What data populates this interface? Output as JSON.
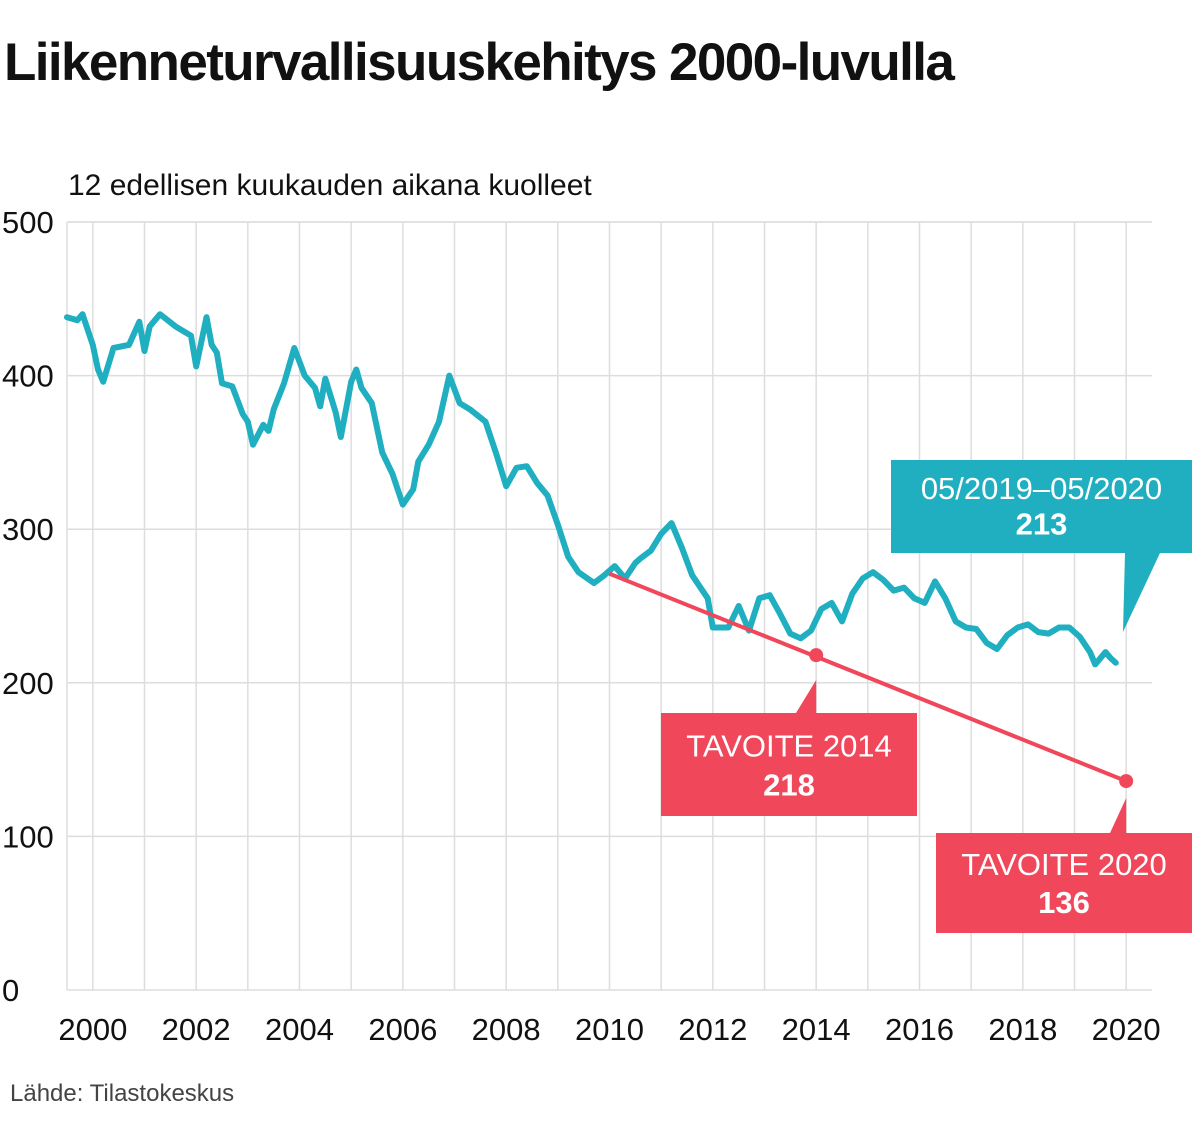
{
  "title": "Liikenneturvallisuuskehitys 2000-luvulla",
  "source": "Lähde: Tilastokeskus",
  "colors": {
    "series": "#1fafc0",
    "target": "#f0475a",
    "grid": "#dddddd"
  },
  "chart_data": {
    "type": "line",
    "title": "Liikenneturvallisuuskehitys 2000-luvulla",
    "subtitle": "12 edellisen kuukauden aikana kuolleet",
    "xlabel": "",
    "ylabel": "12 edellisen kuukauden aikana kuolleet",
    "xlim": [
      1999.5,
      2020.5
    ],
    "ylim": [
      0,
      500
    ],
    "x_ticks": [
      "2000",
      "2002",
      "2004",
      "2006",
      "2008",
      "2010",
      "2012",
      "2014",
      "2016",
      "2018",
      "2020"
    ],
    "y_ticks": [
      "0",
      "100",
      "200",
      "300",
      "400",
      "500"
    ],
    "grid": true,
    "series": [
      {
        "points": [
          [
            1999.5,
            438
          ],
          [
            1999.7,
            436
          ],
          [
            1999.8,
            440
          ],
          [
            2000.0,
            420
          ],
          [
            2000.1,
            404
          ],
          [
            2000.2,
            396
          ],
          [
            2000.4,
            418
          ],
          [
            2000.7,
            420
          ],
          [
            2000.9,
            435
          ],
          [
            2001.0,
            416
          ],
          [
            2001.1,
            432
          ],
          [
            2001.3,
            440
          ],
          [
            2001.6,
            432
          ],
          [
            2001.9,
            426
          ],
          [
            2002.0,
            406
          ],
          [
            2002.2,
            438
          ],
          [
            2002.3,
            420
          ],
          [
            2002.4,
            415
          ],
          [
            2002.5,
            395
          ],
          [
            2002.7,
            393
          ],
          [
            2002.9,
            375
          ],
          [
            2003.0,
            370
          ],
          [
            2003.1,
            355
          ],
          [
            2003.3,
            368
          ],
          [
            2003.4,
            364
          ],
          [
            2003.5,
            378
          ],
          [
            2003.7,
            395
          ],
          [
            2003.9,
            418
          ],
          [
            2004.1,
            400
          ],
          [
            2004.3,
            392
          ],
          [
            2004.4,
            380
          ],
          [
            2004.5,
            398
          ],
          [
            2004.7,
            376
          ],
          [
            2004.8,
            360
          ],
          [
            2005.0,
            396
          ],
          [
            2005.1,
            404
          ],
          [
            2005.2,
            392
          ],
          [
            2005.4,
            382
          ],
          [
            2005.6,
            350
          ],
          [
            2005.8,
            336
          ],
          [
            2006.0,
            316
          ],
          [
            2006.2,
            326
          ],
          [
            2006.3,
            344
          ],
          [
            2006.5,
            355
          ],
          [
            2006.7,
            370
          ],
          [
            2006.9,
            400
          ],
          [
            2007.1,
            382
          ],
          [
            2007.3,
            378
          ],
          [
            2007.6,
            370
          ],
          [
            2007.8,
            350
          ],
          [
            2008.0,
            328
          ],
          [
            2008.2,
            340
          ],
          [
            2008.4,
            341
          ],
          [
            2008.6,
            330
          ],
          [
            2008.8,
            322
          ],
          [
            2009.0,
            303
          ],
          [
            2009.2,
            282
          ],
          [
            2009.4,
            272
          ],
          [
            2009.7,
            265
          ],
          [
            2009.9,
            270
          ],
          [
            2010.1,
            276
          ],
          [
            2010.3,
            268
          ],
          [
            2010.5,
            278
          ],
          [
            2010.6,
            281
          ],
          [
            2010.8,
            286
          ],
          [
            2011.0,
            297
          ],
          [
            2011.2,
            304
          ],
          [
            2011.4,
            288
          ],
          [
            2011.6,
            270
          ],
          [
            2011.9,
            255
          ],
          [
            2012.0,
            236
          ],
          [
            2012.3,
            236
          ],
          [
            2012.5,
            250
          ],
          [
            2012.7,
            234
          ],
          [
            2012.9,
            255
          ],
          [
            2013.1,
            257
          ],
          [
            2013.3,
            245
          ],
          [
            2013.5,
            232
          ],
          [
            2013.7,
            229
          ],
          [
            2013.9,
            234
          ],
          [
            2014.1,
            248
          ],
          [
            2014.3,
            252
          ],
          [
            2014.5,
            240
          ],
          [
            2014.7,
            258
          ],
          [
            2014.9,
            268
          ],
          [
            2015.1,
            272
          ],
          [
            2015.3,
            267
          ],
          [
            2015.5,
            260
          ],
          [
            2015.7,
            262
          ],
          [
            2015.9,
            255
          ],
          [
            2016.1,
            252
          ],
          [
            2016.3,
            266
          ],
          [
            2016.5,
            255
          ],
          [
            2016.7,
            240
          ],
          [
            2016.9,
            236
          ],
          [
            2017.1,
            235
          ],
          [
            2017.3,
            226
          ],
          [
            2017.5,
            222
          ],
          [
            2017.7,
            231
          ],
          [
            2017.9,
            236
          ],
          [
            2018.1,
            238
          ],
          [
            2018.3,
            233
          ],
          [
            2018.5,
            232
          ],
          [
            2018.7,
            236
          ],
          [
            2018.9,
            236
          ],
          [
            2019.1,
            230
          ],
          [
            2019.3,
            220
          ],
          [
            2019.4,
            212
          ],
          [
            2019.6,
            220
          ],
          [
            2019.7,
            216
          ],
          [
            2019.8,
            213
          ]
        ]
      }
    ],
    "target_line": {
      "x": [
        2010,
        2020
      ],
      "y": [
        271,
        136
      ]
    },
    "annotations": [
      {
        "label": "05/2019–05/2020",
        "value": "213",
        "x": 2019.8,
        "y": 213
      },
      {
        "label": "TAVOITE 2014",
        "value": "218",
        "x": 2014,
        "y": 218
      },
      {
        "label": "TAVOITE 2020",
        "value": "136",
        "x": 2020,
        "y": 136
      }
    ]
  }
}
